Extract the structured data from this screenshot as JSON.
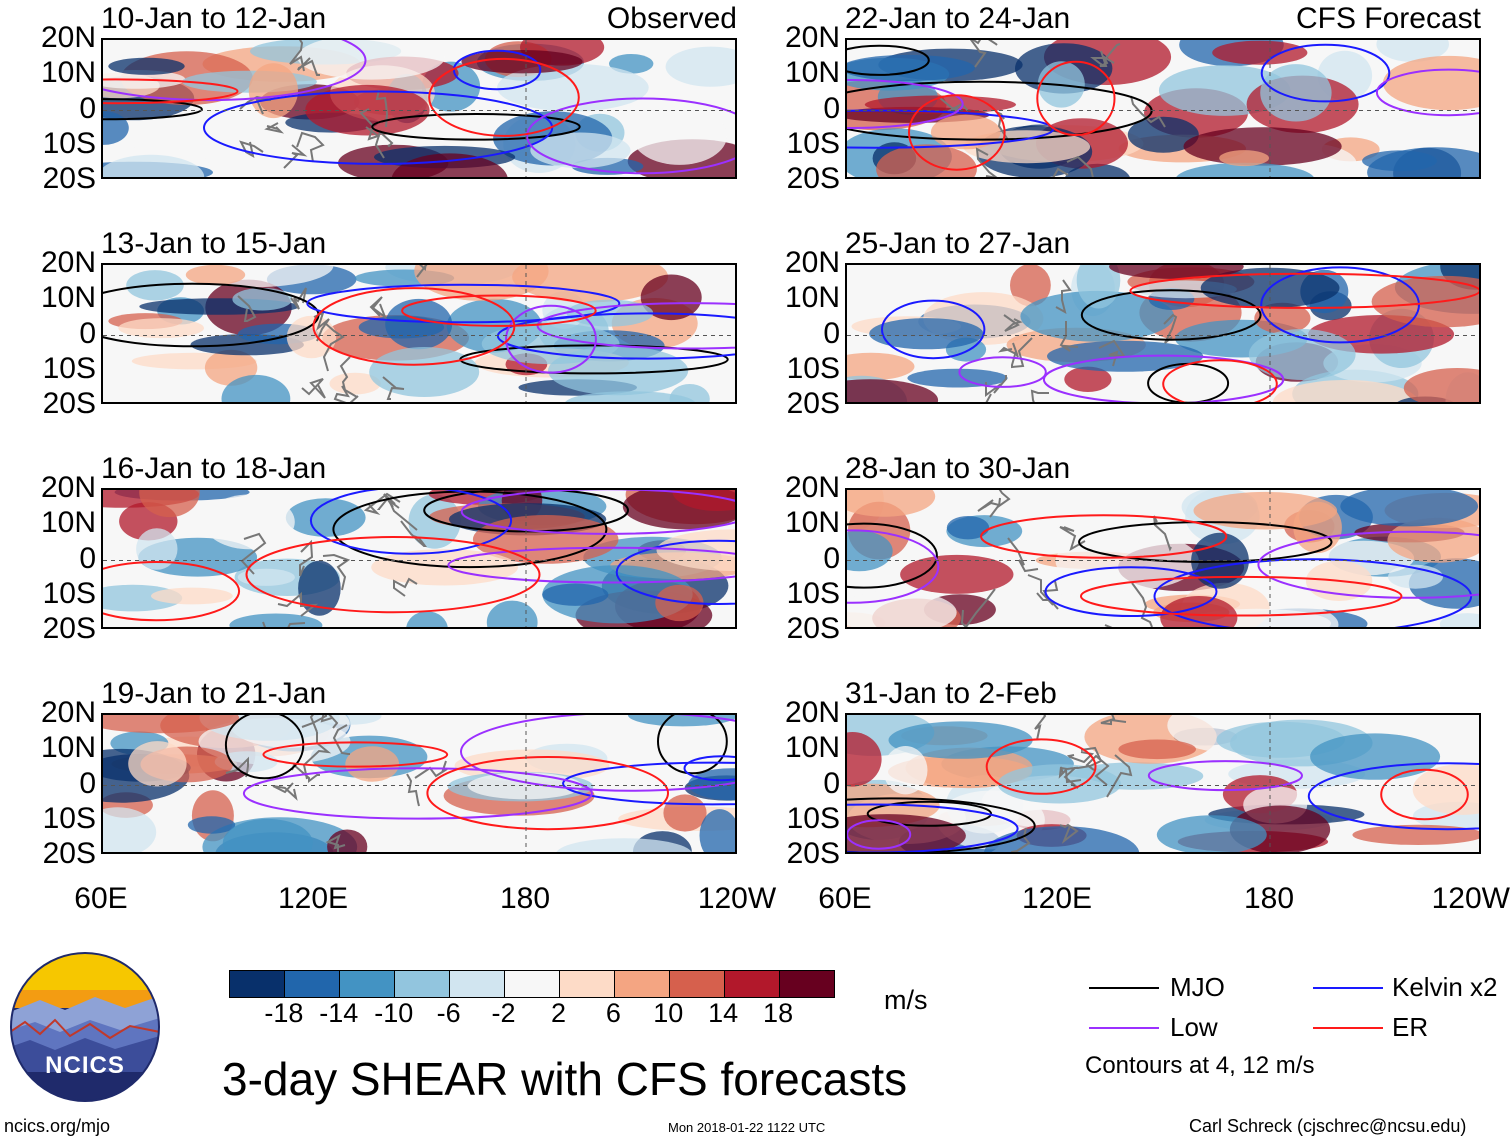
{
  "title": "3-day SHEAR with CFS forecasts",
  "colors": {
    "mjo": "#000000",
    "kelvin": "#1a1aff",
    "low": "#9b30ff",
    "er": "#ff1a1a",
    "coast": "#777777",
    "palette": [
      "#08306b",
      "#2166ac",
      "#4393c3",
      "#92c5de",
      "#d1e5f0",
      "#f7f7f7",
      "#fddbc7",
      "#f4a582",
      "#d6604d",
      "#b2182b",
      "#67001f"
    ]
  },
  "panels": [
    {
      "label": "10-Jan to 12-Jan",
      "tag": "Observed"
    },
    {
      "label": "13-Jan to 15-Jan",
      "tag": ""
    },
    {
      "label": "16-Jan to 18-Jan",
      "tag": ""
    },
    {
      "label": "19-Jan to 21-Jan",
      "tag": ""
    },
    {
      "label": "22-Jan to 24-Jan",
      "tag": "CFS Forecast"
    },
    {
      "label": "25-Jan to 27-Jan",
      "tag": ""
    },
    {
      "label": "28-Jan to 30-Jan",
      "tag": ""
    },
    {
      "label": "31-Jan to 2-Feb",
      "tag": ""
    }
  ],
  "lat_labels": [
    "20N",
    "10N",
    "0",
    "10S",
    "20S"
  ],
  "lon_labels": [
    "60E",
    "120E",
    "180",
    "120W"
  ],
  "colorbar": {
    "labels": [
      "-18",
      "-14",
      "-10",
      "-6",
      "-2",
      "2",
      "6",
      "10",
      "14",
      "18"
    ],
    "unit": "m/s"
  },
  "legend": {
    "items": [
      {
        "label": "MJO",
        "color": "#000000"
      },
      {
        "label": "Kelvin x2",
        "color": "#1a1aff"
      },
      {
        "label": "Low",
        "color": "#9b30ff"
      },
      {
        "label": "ER",
        "color": "#ff1a1a"
      }
    ],
    "note": "Contours at 4, 12 m/s"
  },
  "logo_text": "NCICS",
  "footer": {
    "url": "ncics.org/mjo",
    "timestamp": "Mon 2018-01-22 1122 UTC",
    "credit": "Carl Schreck (cjschrec@ncsu.edu)"
  }
}
